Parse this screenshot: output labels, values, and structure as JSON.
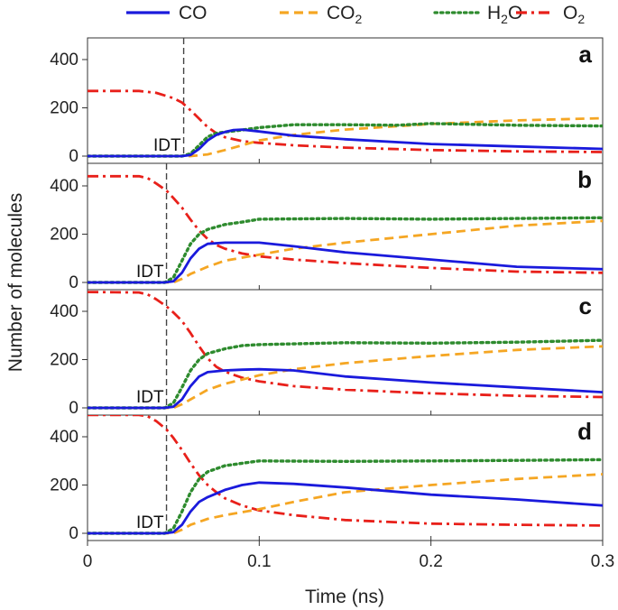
{
  "chart_data": {
    "type": "line",
    "xlabel": "Time (ns)",
    "ylabel": "Number of molecules",
    "xlim": [
      0,
      0.3
    ],
    "ylim": [
      0,
      500
    ],
    "x_ticks": [
      "0",
      "0.1",
      "0.2",
      "0.3"
    ],
    "y_ticks": [
      "0",
      "200",
      "400"
    ],
    "legend": {
      "placement": "top",
      "entries": [
        {
          "key": "CO",
          "label": "CO",
          "sub": "",
          "color": "#1a1adc",
          "dash": "solid"
        },
        {
          "key": "CO2",
          "label": "CO",
          "sub": "2",
          "color": "#f5a623",
          "dash": "dashed"
        },
        {
          "key": "H2O",
          "label": "H",
          "sub": "2",
          "suffix": "O",
          "color": "#2e8b2e",
          "dash": "dotted"
        },
        {
          "key": "O2",
          "label": "O",
          "sub": "2",
          "color": "#e8201a",
          "dash": "dashdot"
        }
      ]
    },
    "panels": [
      {
        "label": "a",
        "idt_label": "IDT",
        "idt": 0.056,
        "series": {
          "O2": [
            [
              0,
              270
            ],
            [
              0.03,
              270
            ],
            [
              0.04,
              262
            ],
            [
              0.05,
              240
            ],
            [
              0.055,
              222
            ],
            [
              0.06,
              190
            ],
            [
              0.065,
              155
            ],
            [
              0.07,
              120
            ],
            [
              0.075,
              95
            ],
            [
              0.08,
              78
            ],
            [
              0.09,
              62
            ],
            [
              0.1,
              55
            ],
            [
              0.12,
              45
            ],
            [
              0.15,
              35
            ],
            [
              0.2,
              25
            ],
            [
              0.25,
              20
            ],
            [
              0.3,
              17
            ]
          ],
          "CO": [
            [
              0,
              0
            ],
            [
              0.055,
              0
            ],
            [
              0.06,
              5
            ],
            [
              0.065,
              30
            ],
            [
              0.07,
              65
            ],
            [
              0.075,
              88
            ],
            [
              0.08,
              100
            ],
            [
              0.085,
              108
            ],
            [
              0.09,
              110
            ],
            [
              0.1,
              102
            ],
            [
              0.12,
              85
            ],
            [
              0.15,
              70
            ],
            [
              0.2,
              50
            ],
            [
              0.25,
              40
            ],
            [
              0.3,
              30
            ]
          ],
          "CO2": [
            [
              0,
              0
            ],
            [
              0.06,
              0
            ],
            [
              0.07,
              7
            ],
            [
              0.08,
              25
            ],
            [
              0.09,
              45
            ],
            [
              0.1,
              65
            ],
            [
              0.12,
              88
            ],
            [
              0.15,
              110
            ],
            [
              0.2,
              133
            ],
            [
              0.25,
              148
            ],
            [
              0.3,
              157
            ]
          ],
          "H2O": [
            [
              0,
              0
            ],
            [
              0.055,
              0
            ],
            [
              0.06,
              10
            ],
            [
              0.065,
              45
            ],
            [
              0.07,
              80
            ],
            [
              0.075,
              95
            ],
            [
              0.08,
              100
            ],
            [
              0.09,
              108
            ],
            [
              0.1,
              118
            ],
            [
              0.12,
              130
            ],
            [
              0.15,
              130
            ],
            [
              0.18,
              128
            ],
            [
              0.2,
              135
            ],
            [
              0.25,
              128
            ],
            [
              0.3,
              125
            ]
          ]
        }
      },
      {
        "label": "b",
        "idt_label": "IDT",
        "idt": 0.046,
        "series": {
          "O2": [
            [
              0,
              440
            ],
            [
              0.03,
              440
            ],
            [
              0.035,
              432
            ],
            [
              0.04,
              410
            ],
            [
              0.046,
              380
            ],
            [
              0.05,
              350
            ],
            [
              0.055,
              310
            ],
            [
              0.06,
              260
            ],
            [
              0.065,
              215
            ],
            [
              0.07,
              180
            ],
            [
              0.075,
              155
            ],
            [
              0.08,
              140
            ],
            [
              0.09,
              120
            ],
            [
              0.1,
              108
            ],
            [
              0.12,
              95
            ],
            [
              0.15,
              80
            ],
            [
              0.2,
              60
            ],
            [
              0.25,
              45
            ],
            [
              0.3,
              40
            ]
          ],
          "CO": [
            [
              0,
              0
            ],
            [
              0.045,
              0
            ],
            [
              0.05,
              5
            ],
            [
              0.055,
              40
            ],
            [
              0.06,
              100
            ],
            [
              0.065,
              140
            ],
            [
              0.07,
              160
            ],
            [
              0.08,
              165
            ],
            [
              0.1,
              165
            ],
            [
              0.12,
              150
            ],
            [
              0.15,
              125
            ],
            [
              0.2,
              95
            ],
            [
              0.25,
              65
            ],
            [
              0.3,
              55
            ]
          ],
          "CO2": [
            [
              0,
              0
            ],
            [
              0.05,
              0
            ],
            [
              0.055,
              15
            ],
            [
              0.06,
              35
            ],
            [
              0.07,
              65
            ],
            [
              0.08,
              90
            ],
            [
              0.1,
              115
            ],
            [
              0.12,
              140
            ],
            [
              0.15,
              165
            ],
            [
              0.2,
              200
            ],
            [
              0.25,
              235
            ],
            [
              0.3,
              255
            ]
          ],
          "H2O": [
            [
              0,
              0
            ],
            [
              0.045,
              0
            ],
            [
              0.05,
              20
            ],
            [
              0.055,
              90
            ],
            [
              0.06,
              160
            ],
            [
              0.065,
              200
            ],
            [
              0.07,
              220
            ],
            [
              0.08,
              240
            ],
            [
              0.09,
              250
            ],
            [
              0.1,
              262
            ],
            [
              0.15,
              265
            ],
            [
              0.2,
              262
            ],
            [
              0.25,
              265
            ],
            [
              0.3,
              268
            ]
          ]
        }
      },
      {
        "label": "c",
        "idt_label": "IDT",
        "idt": 0.046,
        "series": {
          "O2": [
            [
              0,
              480
            ],
            [
              0.03,
              478
            ],
            [
              0.035,
              470
            ],
            [
              0.04,
              450
            ],
            [
              0.046,
              420
            ],
            [
              0.05,
              395
            ],
            [
              0.055,
              360
            ],
            [
              0.06,
              310
            ],
            [
              0.065,
              255
            ],
            [
              0.07,
              205
            ],
            [
              0.075,
              170
            ],
            [
              0.08,
              150
            ],
            [
              0.09,
              125
            ],
            [
              0.1,
              110
            ],
            [
              0.12,
              90
            ],
            [
              0.15,
              75
            ],
            [
              0.2,
              60
            ],
            [
              0.25,
              50
            ],
            [
              0.3,
              45
            ]
          ],
          "CO": [
            [
              0,
              0
            ],
            [
              0.045,
              0
            ],
            [
              0.05,
              5
            ],
            [
              0.055,
              35
            ],
            [
              0.06,
              90
            ],
            [
              0.065,
              130
            ],
            [
              0.07,
              148
            ],
            [
              0.08,
              155
            ],
            [
              0.09,
              158
            ],
            [
              0.1,
              160
            ],
            [
              0.12,
              155
            ],
            [
              0.15,
              130
            ],
            [
              0.2,
              105
            ],
            [
              0.25,
              85
            ],
            [
              0.3,
              65
            ]
          ],
          "CO2": [
            [
              0,
              0
            ],
            [
              0.05,
              0
            ],
            [
              0.055,
              15
            ],
            [
              0.06,
              35
            ],
            [
              0.07,
              75
            ],
            [
              0.08,
              100
            ],
            [
              0.1,
              135
            ],
            [
              0.12,
              160
            ],
            [
              0.15,
              185
            ],
            [
              0.2,
              215
            ],
            [
              0.25,
              240
            ],
            [
              0.3,
              255
            ]
          ],
          "H2O": [
            [
              0,
              0
            ],
            [
              0.045,
              0
            ],
            [
              0.05,
              20
            ],
            [
              0.055,
              85
            ],
            [
              0.06,
              155
            ],
            [
              0.065,
              200
            ],
            [
              0.07,
              225
            ],
            [
              0.08,
              245
            ],
            [
              0.09,
              258
            ],
            [
              0.1,
              262
            ],
            [
              0.15,
              270
            ],
            [
              0.2,
              268
            ],
            [
              0.25,
              272
            ],
            [
              0.3,
              280
            ]
          ]
        }
      },
      {
        "label": "d",
        "idt_label": "IDT",
        "idt": 0.046,
        "series": {
          "O2": [
            [
              0,
              490
            ],
            [
              0.03,
              490
            ],
            [
              0.035,
              485
            ],
            [
              0.04,
              465
            ],
            [
              0.046,
              430
            ],
            [
              0.05,
              395
            ],
            [
              0.055,
              345
            ],
            [
              0.06,
              290
            ],
            [
              0.065,
              240
            ],
            [
              0.07,
              200
            ],
            [
              0.075,
              170
            ],
            [
              0.08,
              145
            ],
            [
              0.09,
              115
            ],
            [
              0.1,
              95
            ],
            [
              0.12,
              75
            ],
            [
              0.15,
              55
            ],
            [
              0.2,
              40
            ],
            [
              0.25,
              35
            ],
            [
              0.3,
              32
            ]
          ],
          "CO": [
            [
              0,
              0
            ],
            [
              0.045,
              0
            ],
            [
              0.05,
              5
            ],
            [
              0.055,
              35
            ],
            [
              0.06,
              90
            ],
            [
              0.065,
              130
            ],
            [
              0.07,
              150
            ],
            [
              0.08,
              180
            ],
            [
              0.09,
              200
            ],
            [
              0.1,
              210
            ],
            [
              0.12,
              205
            ],
            [
              0.15,
              190
            ],
            [
              0.2,
              160
            ],
            [
              0.25,
              140
            ],
            [
              0.3,
              115
            ]
          ],
          "CO2": [
            [
              0,
              0
            ],
            [
              0.05,
              0
            ],
            [
              0.055,
              15
            ],
            [
              0.06,
              35
            ],
            [
              0.07,
              60
            ],
            [
              0.08,
              75
            ],
            [
              0.1,
              100
            ],
            [
              0.12,
              130
            ],
            [
              0.15,
              170
            ],
            [
              0.2,
              200
            ],
            [
              0.25,
              225
            ],
            [
              0.3,
              245
            ]
          ],
          "H2O": [
            [
              0,
              0
            ],
            [
              0.045,
              0
            ],
            [
              0.05,
              20
            ],
            [
              0.055,
              90
            ],
            [
              0.06,
              170
            ],
            [
              0.065,
              225
            ],
            [
              0.07,
              255
            ],
            [
              0.08,
              280
            ],
            [
              0.09,
              290
            ],
            [
              0.1,
              300
            ],
            [
              0.15,
              298
            ],
            [
              0.2,
              300
            ],
            [
              0.25,
              302
            ],
            [
              0.3,
              305
            ]
          ]
        }
      }
    ]
  }
}
